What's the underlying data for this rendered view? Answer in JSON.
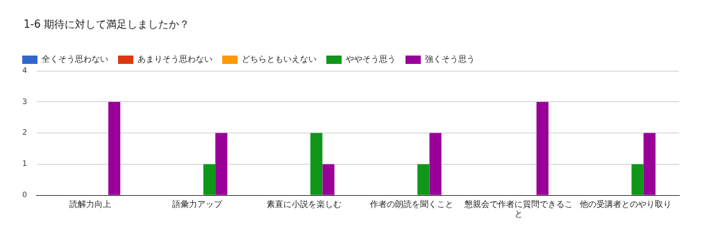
{
  "chart_data": {
    "type": "bar",
    "title": "1-6 期待に対して満足しましたか？",
    "categories": [
      "読解力向上",
      "語彙力アップ",
      "素直に小説を楽しむ",
      "作者の朗読を聞くこと",
      "懇親会で作者に質問できること",
      "他の受講者とのやり取り"
    ],
    "series": [
      {
        "name": "全くそう思わない",
        "color": "#3366cc",
        "values": [
          0,
          0,
          0,
          0,
          0,
          0
        ]
      },
      {
        "name": "あまりそう思わない",
        "color": "#dc3912",
        "values": [
          0,
          0,
          0,
          0,
          0,
          0
        ]
      },
      {
        "name": "どちらともいえない",
        "color": "#ff9900",
        "values": [
          0,
          0,
          0,
          0,
          0,
          0
        ]
      },
      {
        "name": "ややそう思う",
        "color": "#109618",
        "values": [
          0,
          1,
          2,
          1,
          0,
          1
        ]
      },
      {
        "name": "強くそう思う",
        "color": "#990099",
        "values": [
          3,
          2,
          1,
          2,
          3,
          2
        ]
      }
    ],
    "ylim": [
      0,
      4
    ],
    "yticks": [
      0,
      1,
      2,
      3,
      4
    ],
    "grid": "y",
    "legend": "top left"
  }
}
